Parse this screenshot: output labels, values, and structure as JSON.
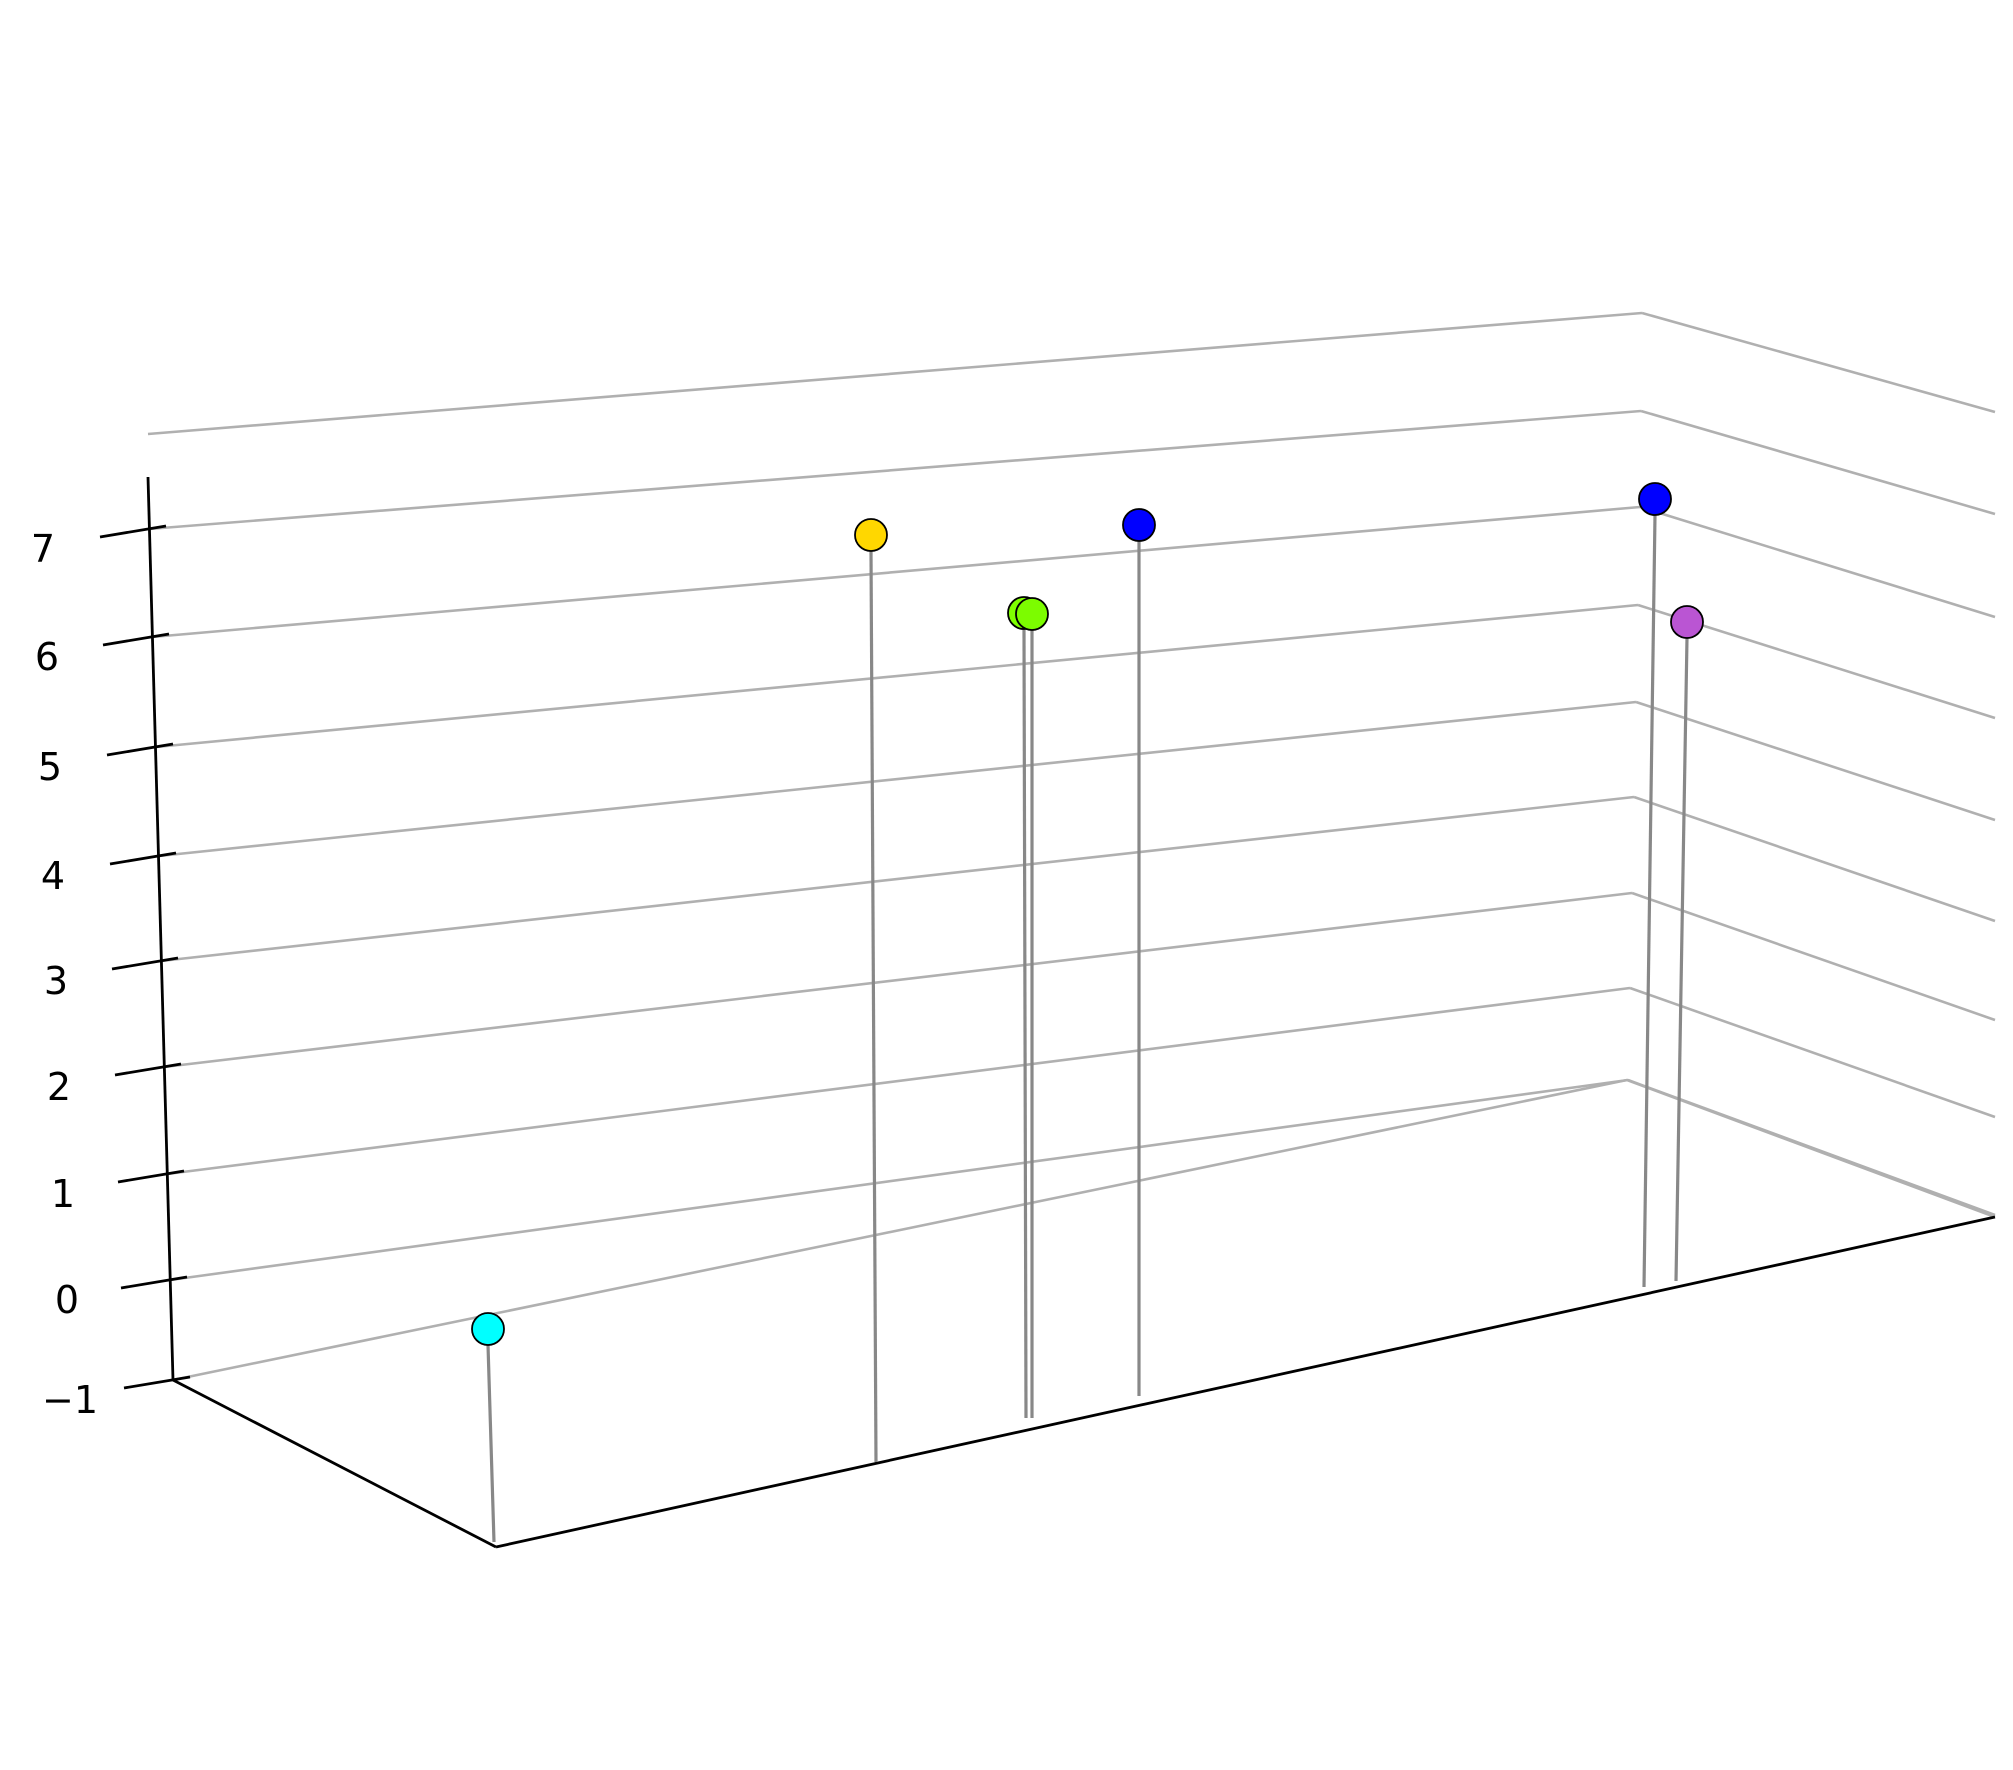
{
  "chart_data": {
    "type": "scatter",
    "subtype": "3d-stem",
    "title": "",
    "xlabel": "",
    "ylabel": "",
    "zlabel": "",
    "zlim": [
      -1,
      8
    ],
    "z_ticks": [
      -1,
      0,
      1,
      2,
      3,
      4,
      5,
      6,
      7
    ],
    "z_tick_labels": [
      "−1",
      "0",
      "1",
      "2",
      "3",
      "4",
      "5",
      "6",
      "7"
    ],
    "grid": true,
    "legend": "none",
    "colors": {
      "axis": "#000000",
      "grid": "#b0b0b0",
      "stem": "#888888",
      "marker_edge": "#000000"
    },
    "points": [
      {
        "z": -1.02,
        "color": "#00ffff"
      },
      {
        "z": 7.15,
        "color": "#ffd700"
      },
      {
        "z": 6.26,
        "color": "#7fff00"
      },
      {
        "z": 6.24,
        "color": "#7cfc00"
      },
      {
        "z": 7.15,
        "color": "#0000ff"
      },
      {
        "z": 7.62,
        "color": "#0000ff"
      },
      {
        "z": 6.52,
        "color": "#ba55d3"
      }
    ]
  }
}
